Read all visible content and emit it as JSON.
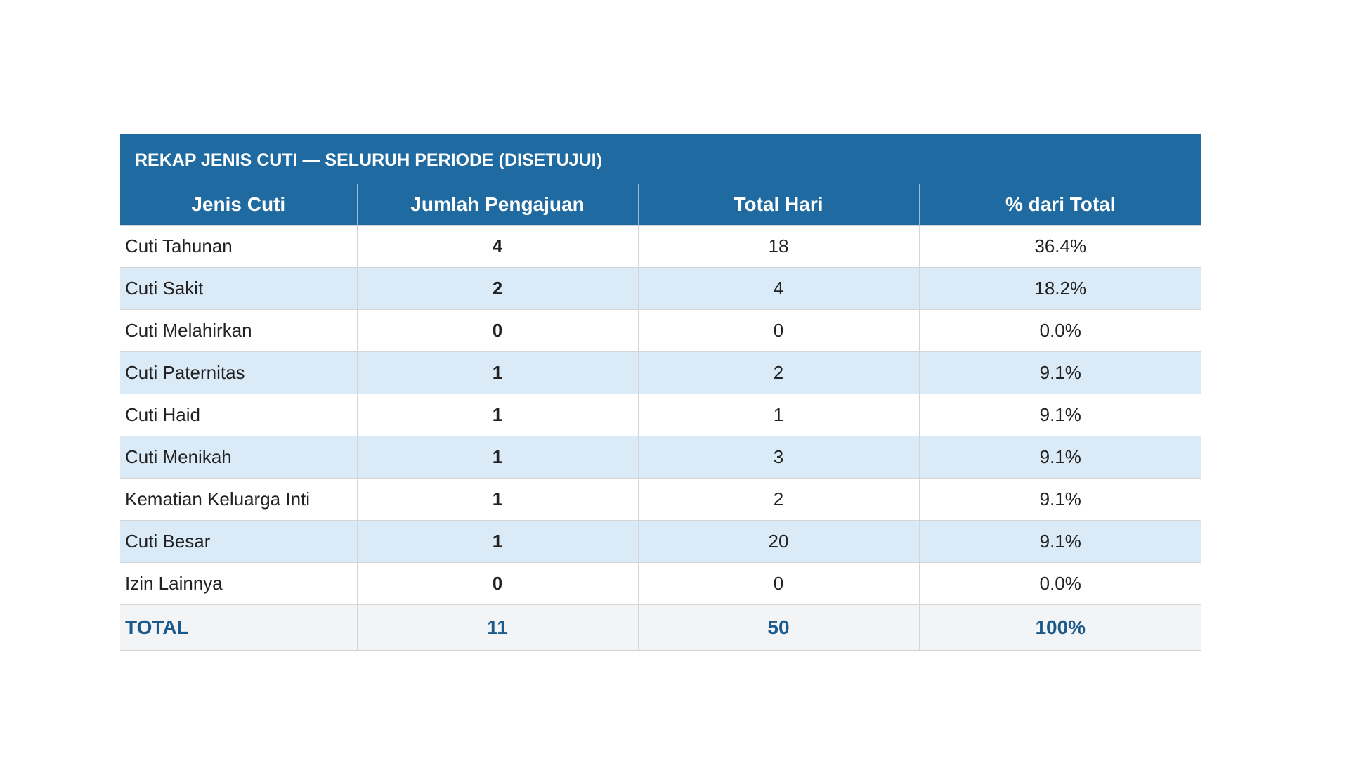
{
  "table": {
    "title": "REKAP JENIS CUTI — SELURUH PERIODE (DISETUJUI)",
    "headers": [
      "Jenis Cuti",
      "Jumlah Pengajuan",
      "Total Hari",
      "% dari Total"
    ],
    "rows": [
      [
        "Cuti Tahunan",
        4,
        18,
        "36.4%"
      ],
      [
        "Cuti Sakit",
        2,
        4,
        "18.2%"
      ],
      [
        "Cuti Melahirkan",
        0,
        0,
        "0.0%"
      ],
      [
        "Cuti Paternitas",
        1,
        2,
        "9.1%"
      ],
      [
        "Cuti Haid",
        1,
        1,
        "9.1%"
      ],
      [
        "Cuti Menikah",
        1,
        3,
        "9.1%"
      ],
      [
        "Kematian Keluarga Inti",
        1,
        2,
        "9.1%"
      ],
      [
        "Cuti Besar",
        1,
        20,
        "9.1%"
      ],
      [
        "Izin Lainnya",
        0,
        0,
        "0.0%"
      ]
    ],
    "total": [
      "TOTAL",
      11,
      50,
      "100%"
    ]
  }
}
